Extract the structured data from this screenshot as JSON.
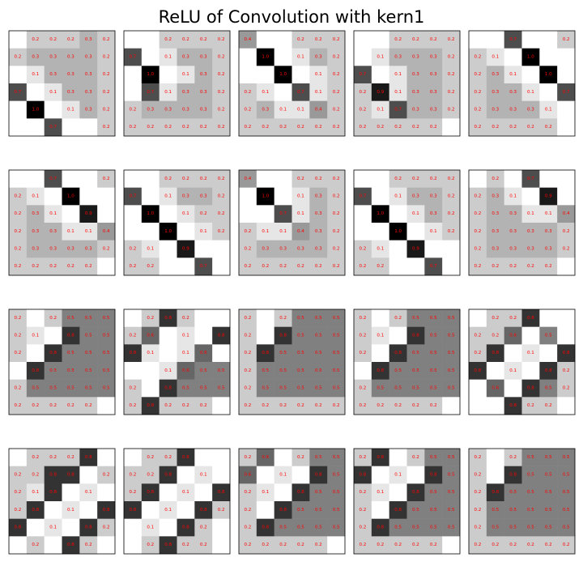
{
  "title": "ReLU of Convolution with kern1",
  "chart_data": [
    {
      "type": "heatmap",
      "values": [
        [
          0,
          0.2,
          0.2,
          0.2,
          0.3,
          0.2
        ],
        [
          0.2,
          0.3,
          0.3,
          0.3,
          0.3,
          0.2
        ],
        [
          0,
          0.1,
          0.3,
          0.3,
          0.3,
          0.2
        ],
        [
          0.7,
          0,
          0.1,
          0.3,
          0.3,
          0.2
        ],
        [
          0,
          1.0,
          0,
          0.1,
          0.3,
          0.2
        ],
        [
          0,
          0,
          0.7,
          0,
          0,
          0.2
        ]
      ]
    },
    {
      "type": "heatmap",
      "values": [
        [
          0,
          0,
          0.2,
          0.2,
          0.2,
          0.2
        ],
        [
          0.7,
          0,
          0.1,
          0.3,
          0.3,
          0.2
        ],
        [
          0,
          1.0,
          0,
          0.1,
          0.3,
          0.2
        ],
        [
          0,
          0.7,
          0.1,
          0.3,
          0.3,
          0.2
        ],
        [
          0.2,
          0.3,
          0.3,
          0.3,
          0.3,
          0.2
        ],
        [
          0.2,
          0.2,
          0.2,
          0.2,
          0.2,
          0.2
        ]
      ]
    },
    {
      "type": "heatmap",
      "values": [
        [
          0.4,
          0,
          0,
          0.2,
          0.2,
          0.2
        ],
        [
          0,
          1.0,
          0,
          0.1,
          0.3,
          0.2
        ],
        [
          0,
          0,
          1.0,
          0,
          0.1,
          0.2
        ],
        [
          0.2,
          0.1,
          0,
          0.7,
          0.1,
          0.2
        ],
        [
          0.2,
          0.3,
          0.1,
          0.1,
          0.4,
          0.2
        ],
        [
          0.2,
          0.2,
          0.2,
          0.2,
          0.2,
          0.2
        ]
      ]
    },
    {
      "type": "heatmap",
      "values": [
        [
          0,
          0,
          0.2,
          0.2,
          0.2,
          0.2
        ],
        [
          0,
          0.1,
          0.3,
          0.3,
          0.3,
          0.2
        ],
        [
          0.7,
          0,
          0.1,
          0.3,
          0.3,
          0.2
        ],
        [
          0.2,
          0.9,
          0.1,
          0.3,
          0.3,
          0.2
        ],
        [
          0.2,
          0.1,
          0.7,
          0.3,
          0.3,
          0.2
        ],
        [
          0.2,
          0.2,
          0.2,
          0.2,
          0.2,
          0
        ]
      ]
    },
    {
      "type": "heatmap",
      "values": [
        [
          0,
          0,
          0.7,
          0,
          0,
          0.2
        ],
        [
          0.2,
          0.1,
          0,
          1.0,
          0,
          0
        ],
        [
          0.2,
          0.3,
          0.1,
          0,
          1.0,
          0
        ],
        [
          0.2,
          0.3,
          0.3,
          0.1,
          0,
          0.7
        ],
        [
          0.2,
          0.3,
          0.3,
          0.3,
          0.1,
          0
        ],
        [
          0.2,
          0.2,
          0.2,
          0.2,
          0.2,
          0
        ]
      ]
    },
    {
      "type": "heatmap",
      "values": [
        [
          0,
          0,
          0.7,
          0,
          0,
          0.2
        ],
        [
          0.2,
          0.1,
          0,
          1.0,
          0,
          0
        ],
        [
          0.2,
          0.3,
          0.1,
          0,
          0.9,
          0
        ],
        [
          0.2,
          0.3,
          0.3,
          0.1,
          0.1,
          0.4
        ],
        [
          0.2,
          0.3,
          0.3,
          0.3,
          0.3,
          0.2
        ],
        [
          0.2,
          0.2,
          0.2,
          0.2,
          0.2,
          0
        ]
      ]
    },
    {
      "type": "heatmap",
      "values": [
        [
          0,
          0,
          0.2,
          0.2,
          0.2,
          0.2
        ],
        [
          0.7,
          0,
          0.1,
          0.3,
          0.3,
          0.2
        ],
        [
          0,
          1.0,
          0,
          0.1,
          0.2,
          0.2
        ],
        [
          0,
          0,
          1.0,
          0,
          0.1,
          0.2
        ],
        [
          0.2,
          0.1,
          0,
          0.9,
          0,
          0
        ],
        [
          0.2,
          0.2,
          0,
          0,
          0.7,
          0
        ]
      ]
    },
    {
      "type": "heatmap",
      "values": [
        [
          0.4,
          0,
          0,
          0.2,
          0.2,
          0.2
        ],
        [
          0,
          1.0,
          0,
          0.1,
          0.3,
          0.2
        ],
        [
          0,
          0,
          0.7,
          0.1,
          0.3,
          0.2
        ],
        [
          0.2,
          0.1,
          0.1,
          0.4,
          0.3,
          0.2
        ],
        [
          0.2,
          0.3,
          0.3,
          0.3,
          0.3,
          0.2
        ],
        [
          0.2,
          0.2,
          0.2,
          0.2,
          0.2,
          0.2
        ]
      ]
    },
    {
      "type": "heatmap",
      "values": [
        [
          0,
          0,
          0.2,
          0.2,
          0.2,
          0.2
        ],
        [
          0.7,
          0,
          0.1,
          0.3,
          0.3,
          0.2
        ],
        [
          0,
          1.0,
          0,
          0.1,
          0.3,
          0.2
        ],
        [
          0,
          0,
          1.0,
          0,
          0.1,
          0.2
        ],
        [
          0.2,
          0.1,
          0,
          0.9,
          0,
          0
        ],
        [
          0.2,
          0.2,
          0,
          0,
          0.7,
          0
        ]
      ]
    },
    {
      "type": "heatmap",
      "values": [
        [
          0,
          0.2,
          0,
          0.7,
          0,
          0
        ],
        [
          0.2,
          0.3,
          0.1,
          0,
          0.9,
          0
        ],
        [
          0.2,
          0.3,
          0.3,
          0.1,
          0.1,
          0.4
        ],
        [
          0.2,
          0.3,
          0.3,
          0.3,
          0.3,
          0.2
        ],
        [
          0.2,
          0.3,
          0.3,
          0.3,
          0.3,
          0.2
        ],
        [
          0.2,
          0.2,
          0.2,
          0.2,
          0.2,
          0
        ]
      ]
    },
    {
      "type": "heatmap",
      "values": [
        [
          0.2,
          0,
          0.2,
          0.5,
          0.5,
          0.5
        ],
        [
          0.2,
          0.1,
          0,
          0.8,
          0.5,
          0.5
        ],
        [
          0.2,
          0,
          0.8,
          0.5,
          0.5,
          0.5
        ],
        [
          0,
          0.8,
          0.5,
          0.5,
          0.5,
          0.5
        ],
        [
          0.2,
          0.5,
          0.5,
          0.5,
          0.5,
          0.5
        ],
        [
          0.2,
          0.2,
          0.2,
          0.2,
          0.2,
          0
        ]
      ]
    },
    {
      "type": "heatmap",
      "values": [
        [
          0,
          0.2,
          0.8,
          0.2,
          0,
          0
        ],
        [
          0.2,
          0.6,
          0,
          0.1,
          0,
          0.8
        ],
        [
          0.8,
          0.1,
          0,
          0.1,
          0.6,
          0
        ],
        [
          0,
          0,
          0.1,
          0.6,
          0.5,
          0.5
        ],
        [
          0.2,
          0,
          0.8,
          0.5,
          0.5,
          0.5
        ],
        [
          0.2,
          0.8,
          0.2,
          0.2,
          0.2,
          0
        ]
      ]
    },
    {
      "type": "heatmap",
      "values": [
        [
          0.2,
          0,
          0.2,
          0.5,
          0.5,
          0.5
        ],
        [
          0.2,
          0,
          0.8,
          0.5,
          0.5,
          0.5
        ],
        [
          0.2,
          0.8,
          0.5,
          0.5,
          0.5,
          0.5
        ],
        [
          0.2,
          0.5,
          0.5,
          0.5,
          0.5,
          0.5
        ],
        [
          0.2,
          0.5,
          0.5,
          0.5,
          0.5,
          0.5
        ],
        [
          0.2,
          0.2,
          0.2,
          0.2,
          0.2,
          0.2
        ]
      ]
    },
    {
      "type": "heatmap",
      "values": [
        [
          0.2,
          0,
          0.2,
          0.5,
          0.5,
          0.5
        ],
        [
          0.2,
          0.1,
          0,
          0.8,
          0.5,
          0.5
        ],
        [
          0.2,
          0,
          0.8,
          0.5,
          0.5,
          0.5
        ],
        [
          0,
          0.8,
          0.5,
          0.5,
          0.5,
          0.5
        ],
        [
          0.2,
          0.5,
          0.5,
          0.5,
          0.5,
          0.5
        ],
        [
          0.2,
          0.2,
          0.2,
          0.2,
          0.2,
          0
        ]
      ]
    },
    {
      "type": "heatmap",
      "values": [
        [
          0,
          0.2,
          0.2,
          0.8,
          0,
          0
        ],
        [
          0.2,
          0.2,
          0.6,
          0,
          0.5,
          0
        ],
        [
          0.2,
          0.8,
          0,
          0.1,
          0,
          0.8
        ],
        [
          0.8,
          0,
          0.1,
          0,
          0.8,
          0.2
        ],
        [
          0,
          0.6,
          0,
          0.8,
          0.5,
          0.2
        ],
        [
          0,
          0,
          0.8,
          0.2,
          0.2,
          0
        ]
      ]
    },
    {
      "type": "heatmap",
      "values": [
        [
          0,
          0.2,
          0.2,
          0.2,
          0.8,
          0
        ],
        [
          0.2,
          0.2,
          0.8,
          0.8,
          0,
          0.2
        ],
        [
          0.2,
          0.1,
          0.8,
          0,
          0.1,
          0
        ],
        [
          0.2,
          0.8,
          0,
          0.1,
          0,
          0.8
        ],
        [
          0.8,
          0,
          0.1,
          0,
          0.8,
          0.2
        ],
        [
          0,
          0.2,
          0,
          0.8,
          0.2,
          0
        ]
      ]
    },
    {
      "type": "heatmap",
      "values": [
        [
          0,
          0.2,
          0.2,
          0.8,
          0,
          0
        ],
        [
          0.2,
          0.2,
          0.8,
          0,
          0.1,
          0
        ],
        [
          0.2,
          0.8,
          0,
          0.1,
          0,
          0.8
        ],
        [
          0.8,
          0,
          0.1,
          0,
          0.8,
          0.2
        ],
        [
          0,
          0.1,
          0,
          0.8,
          0.2,
          0
        ],
        [
          0,
          0.2,
          0.8,
          0.2,
          0.2,
          0
        ]
      ]
    },
    {
      "type": "heatmap",
      "values": [
        [
          0.2,
          0.6,
          0,
          0.2,
          0.5,
          0.5
        ],
        [
          0.6,
          0,
          0.1,
          0,
          0.8,
          0.5
        ],
        [
          0.2,
          0.1,
          0,
          0.8,
          0.5,
          0.5
        ],
        [
          0.2,
          0,
          0.8,
          0.5,
          0.5,
          0.5
        ],
        [
          0.2,
          0.8,
          0.5,
          0.5,
          0.5,
          0.5
        ],
        [
          0.2,
          0.2,
          0.2,
          0.2,
          0.2,
          0
        ]
      ]
    },
    {
      "type": "heatmap",
      "values": [
        [
          0.2,
          0.8,
          0,
          0.2,
          0.5,
          0.5
        ],
        [
          0.8,
          0,
          0.1,
          0,
          0.8,
          0.5
        ],
        [
          0.2,
          0.1,
          0,
          0.8,
          0.5,
          0.5
        ],
        [
          0.2,
          0,
          0.8,
          0.5,
          0.5,
          0.5
        ],
        [
          0.2,
          0.8,
          0.5,
          0.5,
          0.5,
          0.5
        ],
        [
          0.2,
          0.2,
          0.2,
          0.2,
          0.2,
          0
        ]
      ]
    },
    {
      "type": "heatmap",
      "values": [
        [
          0.2,
          0,
          0.2,
          0.5,
          0.5,
          0.5
        ],
        [
          0.2,
          0,
          0.8,
          0.5,
          0.5,
          0.5
        ],
        [
          0.2,
          0.8,
          0.5,
          0.5,
          0.5,
          0.5
        ],
        [
          0.2,
          0.5,
          0.5,
          0.5,
          0.5,
          0.5
        ],
        [
          0.2,
          0.5,
          0.5,
          0.5,
          0.5,
          0.5
        ],
        [
          0.2,
          0.2,
          0.2,
          0.2,
          0.2,
          0.2
        ]
      ]
    }
  ]
}
